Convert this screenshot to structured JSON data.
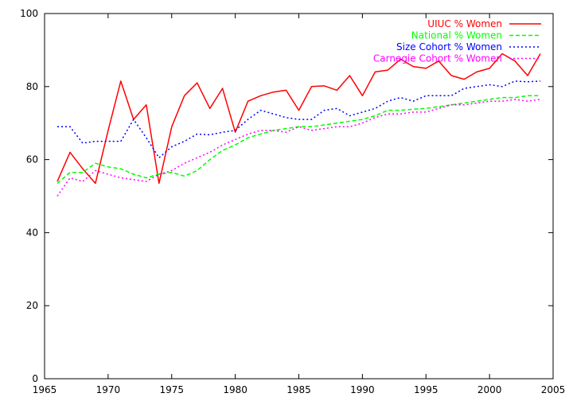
{
  "chart_data": {
    "type": "line",
    "title": "",
    "xlabel": "",
    "ylabel": "",
    "xlim": [
      1965,
      2005
    ],
    "ylim": [
      0,
      100
    ],
    "xticks": [
      1965,
      1970,
      1975,
      1980,
      1985,
      1990,
      1995,
      2000,
      2005
    ],
    "yticks": [
      0,
      20,
      40,
      60,
      80,
      100
    ],
    "grid": false,
    "legend_position": "top-right",
    "x": [
      1966,
      1967,
      1968,
      1969,
      1970,
      1971,
      1972,
      1973,
      1974,
      1975,
      1976,
      1977,
      1978,
      1979,
      1980,
      1981,
      1982,
      1983,
      1984,
      1985,
      1986,
      1987,
      1988,
      1989,
      1990,
      1991,
      1992,
      1993,
      1994,
      1995,
      1996,
      1997,
      1998,
      1999,
      2000,
      2001,
      2002,
      2003,
      2004
    ],
    "series": [
      {
        "name": "UIUC % Women",
        "color": "#ff0000",
        "dash": "solid",
        "values": [
          54,
          62,
          57.5,
          53.5,
          68,
          81.5,
          71,
          75,
          53.5,
          69,
          77.5,
          81,
          74,
          79.5,
          67.5,
          76,
          77.5,
          78.5,
          79,
          73.5,
          80,
          80.2,
          79,
          83,
          77.5,
          84,
          84.5,
          87.5,
          85.5,
          85,
          87,
          83,
          82,
          84,
          85,
          89,
          87,
          83,
          89
        ]
      },
      {
        "name": "National % Women",
        "color": "#00ff00",
        "dash": "dashed",
        "values": [
          53.5,
          56.5,
          56.5,
          59,
          58,
          57.5,
          56,
          55,
          56,
          56.5,
          55.5,
          57,
          60,
          62.5,
          64,
          66,
          67,
          68,
          68.5,
          69,
          69,
          69.5,
          70,
          70.5,
          71,
          72,
          73.5,
          73.5,
          73.8,
          74,
          74.5,
          75,
          75.5,
          76,
          76.5,
          77,
          77,
          77.5,
          77.5
        ]
      },
      {
        "name": "Size Cohort % Women",
        "color": "#0000ff",
        "dash": "dotted",
        "values": [
          69,
          69,
          64.5,
          65,
          65,
          65,
          71,
          66,
          60.5,
          63.5,
          65,
          67,
          66.8,
          67.5,
          68,
          71,
          73.5,
          72.5,
          71.5,
          71,
          71,
          73.5,
          74,
          72,
          73,
          74,
          76,
          77,
          76,
          77.5,
          77.5,
          77.5,
          79.5,
          80,
          80.5,
          80,
          81.5,
          81.3,
          81.5
        ]
      },
      {
        "name": "Carnegie Cohort % Women",
        "color": "#ff00ff",
        "dash": "dotted",
        "values": [
          50,
          55,
          54,
          57,
          56,
          55,
          54.5,
          54,
          56,
          57,
          59,
          60.5,
          62,
          64,
          65.5,
          67,
          68,
          68,
          67.5,
          69,
          68,
          68.5,
          69,
          69,
          70,
          71.5,
          72.5,
          72.5,
          73,
          73,
          74,
          75,
          75,
          75.5,
          76,
          76,
          76.5,
          76,
          76.5
        ]
      }
    ]
  }
}
